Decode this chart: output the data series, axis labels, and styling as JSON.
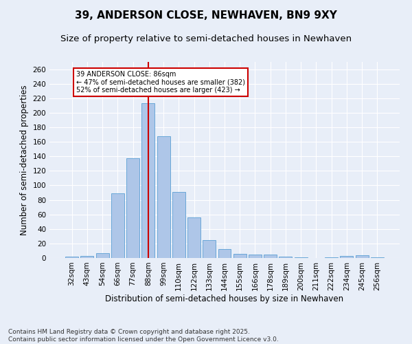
{
  "title": "39, ANDERSON CLOSE, NEWHAVEN, BN9 9XY",
  "subtitle": "Size of property relative to semi-detached houses in Newhaven",
  "xlabel": "Distribution of semi-detached houses by size in Newhaven",
  "ylabel": "Number of semi-detached properties",
  "categories": [
    "32sqm",
    "43sqm",
    "54sqm",
    "66sqm",
    "77sqm",
    "88sqm",
    "99sqm",
    "110sqm",
    "122sqm",
    "133sqm",
    "144sqm",
    "155sqm",
    "166sqm",
    "178sqm",
    "189sqm",
    "200sqm",
    "211sqm",
    "222sqm",
    "234sqm",
    "245sqm",
    "256sqm"
  ],
  "values": [
    2,
    3,
    7,
    89,
    137,
    213,
    168,
    91,
    56,
    25,
    12,
    6,
    5,
    5,
    2,
    1,
    0,
    1,
    3,
    4,
    1
  ],
  "bar_color": "#aec6e8",
  "bar_edge_color": "#5a9fd4",
  "vline_x": 5,
  "vline_color": "#cc0000",
  "annotation_text": "39 ANDERSON CLOSE: 86sqm\n← 47% of semi-detached houses are smaller (382)\n52% of semi-detached houses are larger (423) →",
  "annotation_box_color": "#ffffff",
  "annotation_box_edge_color": "#cc0000",
  "ylim": [
    0,
    270
  ],
  "yticks": [
    0,
    20,
    40,
    60,
    80,
    100,
    120,
    140,
    160,
    180,
    200,
    220,
    240,
    260
  ],
  "footer_text": "Contains HM Land Registry data © Crown copyright and database right 2025.\nContains public sector information licensed under the Open Government Licence v3.0.",
  "bg_color": "#e8eef8",
  "plot_bg_color": "#e8eef8",
  "title_fontsize": 11,
  "subtitle_fontsize": 9.5,
  "tick_fontsize": 7.5,
  "label_fontsize": 8.5,
  "footer_fontsize": 6.5
}
